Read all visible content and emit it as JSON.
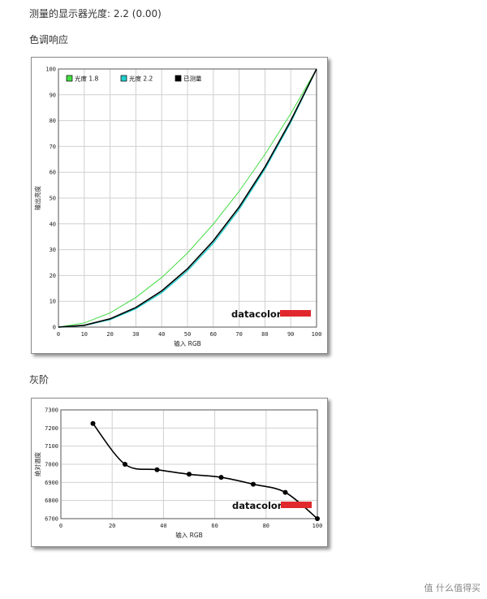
{
  "header": {
    "measured_gamma": "测量的显示器光度:  2.2 (0.00)",
    "tone_response_title": "色调响应",
    "grayscale_title": "灰阶"
  },
  "brand": {
    "logo_text": "datacolor",
    "logo_color": "#e0272d"
  },
  "watermark": "值 什么值得买",
  "chart_data": [
    {
      "type": "line",
      "xlabel": "输入 RGB",
      "ylabel": "输出亮度",
      "xlim": [
        0,
        100
      ],
      "ylim": [
        0,
        100
      ],
      "xticks": [
        0,
        10,
        20,
        30,
        40,
        50,
        60,
        70,
        80,
        90,
        100
      ],
      "yticks": [
        0,
        10,
        20,
        30,
        40,
        50,
        60,
        70,
        80,
        90,
        100
      ],
      "grid": true,
      "legend_position": "top-left",
      "x": [
        0,
        10,
        20,
        30,
        40,
        50,
        60,
        70,
        80,
        90,
        100
      ],
      "series": [
        {
          "name": "光度 1.8",
          "color": "#44dd44",
          "values": [
            0,
            1.6,
            5.5,
            11.5,
            19.2,
            28.7,
            39.9,
            52.6,
            66.9,
            82.7,
            100
          ]
        },
        {
          "name": "光度 2.2",
          "color": "#22cccc",
          "values": [
            0,
            0.6,
            2.9,
            7.1,
            13.3,
            21.8,
            32.5,
            45.6,
            61.2,
            79.3,
            100
          ]
        },
        {
          "name": "已测量",
          "color": "#000000",
          "values": [
            0,
            0.7,
            3.2,
            7.6,
            14.0,
            22.6,
            33.4,
            46.5,
            62.0,
            80.0,
            100
          ]
        }
      ]
    },
    {
      "type": "line",
      "xlabel": "输入 RGB",
      "ylabel": "绝对温度",
      "xlim": [
        0,
        100
      ],
      "ylim": [
        6700,
        7300
      ],
      "xticks": [
        0,
        20,
        40,
        60,
        80,
        100
      ],
      "yticks": [
        6700,
        6800,
        6900,
        7000,
        7100,
        7200,
        7300
      ],
      "grid": true,
      "x": [
        12.5,
        25,
        37.5,
        50,
        62.5,
        75,
        87.5,
        100
      ],
      "series": [
        {
          "name": "",
          "color": "#000000",
          "values": [
            7225,
            7000,
            6970,
            6945,
            6928,
            6890,
            6845,
            6700
          ]
        }
      ]
    }
  ]
}
